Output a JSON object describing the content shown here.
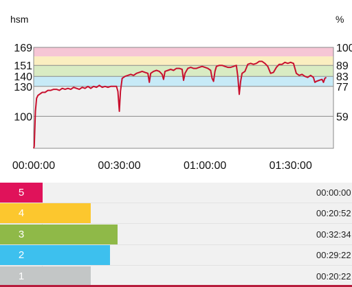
{
  "chart_data": {
    "type": "line",
    "ylabel_left": "hsm",
    "ylabel_right": "%",
    "ylim": [
      68,
      169
    ],
    "yticks_left": [
      169,
      151,
      140,
      130,
      100
    ],
    "yticks_right": [
      "100",
      "89",
      "83",
      "77",
      "59"
    ],
    "xlim_min": [
      0,
      105
    ],
    "xticks": [
      {
        "min": 0,
        "label": "00:00:00"
      },
      {
        "min": 30,
        "label": "00:30:00"
      },
      {
        "min": 60,
        "label": "01:00:00"
      },
      {
        "min": 90,
        "label": "01:30:00"
      }
    ],
    "zones": [
      {
        "from": 130,
        "to": 140,
        "color": "#c7eaf7"
      },
      {
        "from": 140,
        "to": 151,
        "color": "#d9ebc3"
      },
      {
        "from": 151,
        "to": 160,
        "color": "#fbeec0"
      },
      {
        "from": 160,
        "to": 169,
        "color": "#f6c6d5"
      }
    ],
    "series": [
      {
        "color": "#c8102e",
        "points": [
          [
            0,
            68
          ],
          [
            0.2,
            70
          ],
          [
            0.6,
            105
          ],
          [
            1,
            118
          ],
          [
            1.5,
            121
          ],
          [
            2,
            122
          ],
          [
            3,
            124
          ],
          [
            4,
            124
          ],
          [
            5,
            126
          ],
          [
            6,
            126
          ],
          [
            7,
            127
          ],
          [
            8,
            127
          ],
          [
            9,
            126
          ],
          [
            10,
            128
          ],
          [
            11,
            127
          ],
          [
            12,
            128
          ],
          [
            13,
            127
          ],
          [
            14,
            129
          ],
          [
            15,
            128
          ],
          [
            16,
            127
          ],
          [
            17,
            129
          ],
          [
            18,
            128
          ],
          [
            19,
            130
          ],
          [
            20,
            128
          ],
          [
            21,
            130
          ],
          [
            22,
            129
          ],
          [
            23,
            131
          ],
          [
            24,
            129
          ],
          [
            25,
            130
          ],
          [
            26,
            129
          ],
          [
            27,
            130
          ],
          [
            28,
            130
          ],
          [
            29,
            130
          ],
          [
            29.5,
            125
          ],
          [
            30,
            105
          ],
          [
            30.4,
            125
          ],
          [
            31,
            138
          ],
          [
            32,
            140
          ],
          [
            33,
            141
          ],
          [
            34,
            142
          ],
          [
            35,
            141
          ],
          [
            36,
            143
          ],
          [
            37,
            144
          ],
          [
            38,
            145
          ],
          [
            39,
            144
          ],
          [
            40,
            143
          ],
          [
            40.5,
            134
          ],
          [
            41,
            143
          ],
          [
            42,
            145
          ],
          [
            43,
            146
          ],
          [
            44,
            145
          ],
          [
            45,
            142
          ],
          [
            45.5,
            137
          ],
          [
            46,
            145
          ],
          [
            47,
            146
          ],
          [
            48,
            147
          ],
          [
            49,
            146
          ],
          [
            50,
            148
          ],
          [
            51,
            148
          ],
          [
            52,
            147
          ],
          [
            52.5,
            136
          ],
          [
            53,
            143
          ],
          [
            54,
            148
          ],
          [
            55,
            149
          ],
          [
            56,
            148
          ],
          [
            57,
            148
          ],
          [
            58,
            149
          ],
          [
            59,
            150
          ],
          [
            60,
            149
          ],
          [
            61,
            148
          ],
          [
            62,
            146
          ],
          [
            62.5,
            138
          ],
          [
            63,
            135
          ],
          [
            63.5,
            145
          ],
          [
            64,
            150
          ],
          [
            65,
            151
          ],
          [
            66,
            151
          ],
          [
            67,
            150
          ],
          [
            68,
            149
          ],
          [
            69,
            149
          ],
          [
            70,
            150
          ],
          [
            71,
            151
          ],
          [
            71.5,
            140
          ],
          [
            72,
            122
          ],
          [
            72.5,
            135
          ],
          [
            73,
            143
          ],
          [
            74,
            145
          ],
          [
            75,
            152
          ],
          [
            76,
            153
          ],
          [
            77,
            152
          ],
          [
            78,
            153
          ],
          [
            79,
            155
          ],
          [
            80,
            155
          ],
          [
            81,
            153
          ],
          [
            82,
            150
          ],
          [
            83,
            143
          ],
          [
            84,
            144
          ],
          [
            85,
            149
          ],
          [
            86,
            152
          ],
          [
            87,
            152
          ],
          [
            88,
            154
          ],
          [
            89,
            153
          ],
          [
            90,
            154
          ],
          [
            91,
            153
          ],
          [
            92,
            143
          ],
          [
            93,
            141
          ],
          [
            94,
            142
          ],
          [
            95,
            140
          ],
          [
            96,
            139
          ],
          [
            97,
            141
          ],
          [
            98,
            139
          ],
          [
            98.5,
            134
          ],
          [
            99,
            135
          ],
          [
            100,
            136
          ],
          [
            101,
            137
          ],
          [
            101.5,
            134
          ],
          [
            102,
            138
          ],
          [
            102.5,
            139
          ]
        ]
      }
    ]
  },
  "zone_table": [
    {
      "zone": "5",
      "time": "00:00:00",
      "color": "#e0125a",
      "bar_fraction": 0.122
    },
    {
      "zone": "4",
      "time": "00:20:52",
      "color": "#fcc72e",
      "bar_fraction": 0.258
    },
    {
      "zone": "3",
      "time": "00:32:34",
      "color": "#8fb948",
      "bar_fraction": 0.334
    },
    {
      "zone": "2",
      "time": "00:29:22",
      "color": "#3dc0ee",
      "bar_fraction": 0.313
    },
    {
      "zone": "1",
      "time": "00:20:22",
      "color": "#c3c6c6",
      "bar_fraction": 0.258
    }
  ]
}
